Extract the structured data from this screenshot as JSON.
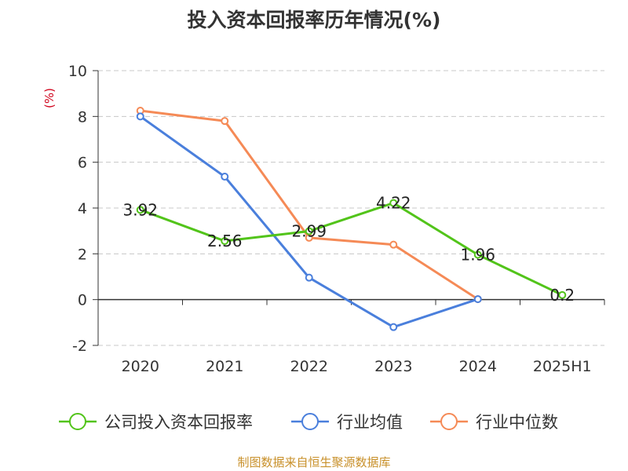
{
  "chart_data": {
    "type": "line",
    "title": "投入资本回报率历年情况(%)",
    "ylabel": "(%)",
    "xlabel": "",
    "categories": [
      "2020",
      "2021",
      "2022",
      "2023",
      "2024",
      "2025H1"
    ],
    "ylim": [
      -2,
      10
    ],
    "yticks": [
      -2,
      0,
      2,
      4,
      6,
      8,
      10
    ],
    "grid": true,
    "legend_position": "bottom",
    "series": [
      {
        "name": "公司投入资本回报率",
        "color": "#52c41a",
        "values": [
          3.92,
          2.56,
          2.99,
          4.22,
          1.96,
          0.2
        ],
        "labels": [
          "3.92",
          "2.56",
          "2.99",
          "4.22",
          "1.96",
          "0.2"
        ]
      },
      {
        "name": "行业均值",
        "color": "#4a7fdc",
        "values": [
          8.0,
          5.37,
          0.96,
          -1.2,
          0.02,
          null
        ]
      },
      {
        "name": "行业中位数",
        "color": "#f58a56",
        "values": [
          8.25,
          7.8,
          2.7,
          2.4,
          0.02,
          null
        ]
      }
    ]
  },
  "footer": {
    "source": "制图数据来自恒生聚源数据库"
  }
}
